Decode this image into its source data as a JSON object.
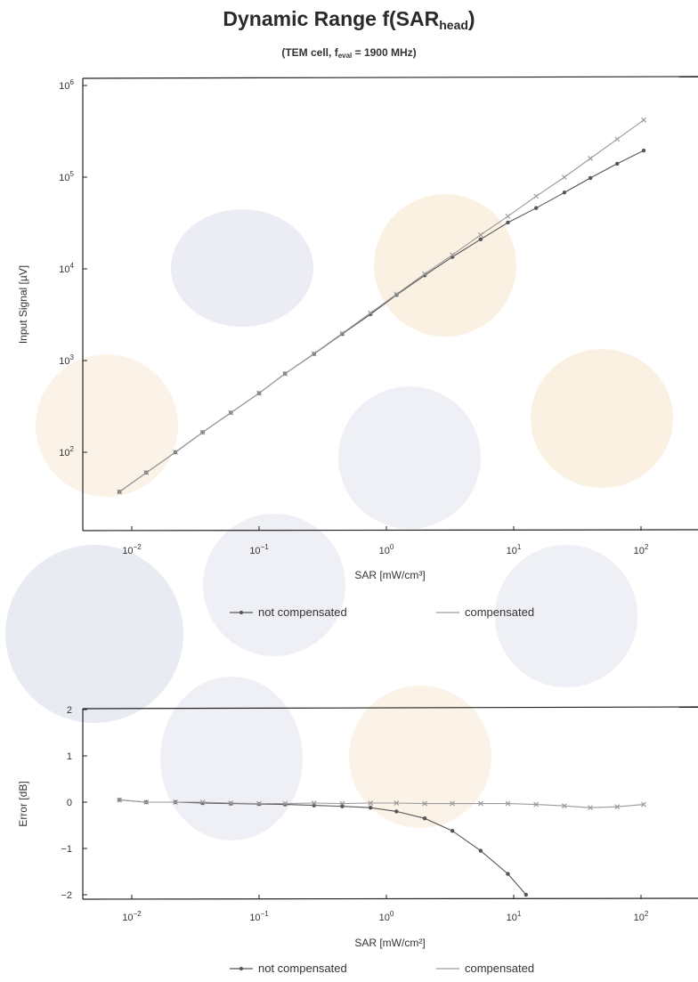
{
  "title": {
    "main": "Dynamic Range f(SAR",
    "sub": "head",
    "close": ")"
  },
  "subtitle": {
    "pre": "(TEM cell, f",
    "sub": "eval",
    "post": " = 1900 MHz)"
  },
  "colors": {
    "not_compensated": "#555555",
    "compensated": "#9a9a9a",
    "axes": "#222222"
  },
  "chart_data": [
    {
      "type": "line",
      "xscale": "log",
      "yscale": "log",
      "xlim": [
        0.004,
        200
      ],
      "ylim": [
        25,
        1000000
      ],
      "xlabel": "SAR [mW/cm³]",
      "ylabel": "Input Signal [µV]",
      "xticks": [
        {
          "base": "10",
          "exp": "−2"
        },
        {
          "base": "10",
          "exp": "−1"
        },
        {
          "base": "10",
          "exp": "0"
        },
        {
          "base": "10",
          "exp": "1"
        },
        {
          "base": "10",
          "exp": "2"
        }
      ],
      "yticks": [
        {
          "base": "10",
          "exp": "2"
        },
        {
          "base": "10",
          "exp": "3"
        },
        {
          "base": "10",
          "exp": "4"
        },
        {
          "base": "10",
          "exp": "5"
        },
        {
          "base": "10",
          "exp": "6"
        }
      ],
      "legend": [
        "not compensated",
        "compensated"
      ],
      "x": [
        0.008,
        0.013,
        0.022,
        0.036,
        0.06,
        0.1,
        0.16,
        0.27,
        0.45,
        0.75,
        1.2,
        2.0,
        3.3,
        5.5,
        9.0,
        15,
        25,
        40,
        65,
        105
      ],
      "series": [
        {
          "name": "not compensated",
          "values": [
            37,
            60,
            100,
            165,
            270,
            440,
            720,
            1180,
            1950,
            3200,
            5200,
            8500,
            13500,
            21000,
            32000,
            46000,
            68000,
            98000,
            140000,
            195000
          ]
        },
        {
          "name": "compensated",
          "values": [
            37,
            60,
            100,
            165,
            270,
            440,
            720,
            1190,
            1980,
            3300,
            5300,
            8800,
            14200,
            23500,
            37500,
            62000,
            100000,
            160000,
            260000,
            420000
          ]
        }
      ]
    },
    {
      "type": "line",
      "xscale": "log",
      "yscale": "linear",
      "xlim": [
        0.004,
        200
      ],
      "ylim": [
        -2,
        2
      ],
      "xlabel": "SAR [mW/cm²]",
      "ylabel": "Error [dB]",
      "xticks": [
        {
          "base": "10",
          "exp": "−2"
        },
        {
          "base": "10",
          "exp": "−1"
        },
        {
          "base": "10",
          "exp": "0"
        },
        {
          "base": "10",
          "exp": "1"
        },
        {
          "base": "10",
          "exp": "2"
        }
      ],
      "yticks": [
        "2",
        "1",
        "0",
        "−1",
        "−2"
      ],
      "legend": [
        "not compensated",
        "compensated"
      ],
      "series": [
        {
          "name": "not compensated",
          "x": [
            0.008,
            0.013,
            0.022,
            0.036,
            0.06,
            0.1,
            0.16,
            0.27,
            0.45,
            0.75,
            1.2,
            2.0,
            3.3,
            5.5,
            9.0,
            12.5
          ],
          "values": [
            0.05,
            0.0,
            0.0,
            -0.02,
            -0.03,
            -0.04,
            -0.05,
            -0.07,
            -0.09,
            -0.12,
            -0.2,
            -0.35,
            -0.62,
            -1.05,
            -1.55,
            -2.0
          ]
        },
        {
          "name": "compensated",
          "x": [
            0.008,
            0.013,
            0.022,
            0.036,
            0.06,
            0.1,
            0.16,
            0.27,
            0.45,
            0.75,
            1.2,
            2.0,
            3.3,
            5.5,
            9.0,
            15,
            25,
            40,
            65,
            105
          ],
          "values": [
            0.05,
            0.0,
            0.0,
            0.0,
            -0.02,
            -0.03,
            -0.03,
            -0.02,
            -0.03,
            -0.02,
            -0.02,
            -0.03,
            -0.03,
            -0.03,
            -0.03,
            -0.05,
            -0.08,
            -0.12,
            -0.1,
            -0.05
          ]
        }
      ]
    }
  ]
}
